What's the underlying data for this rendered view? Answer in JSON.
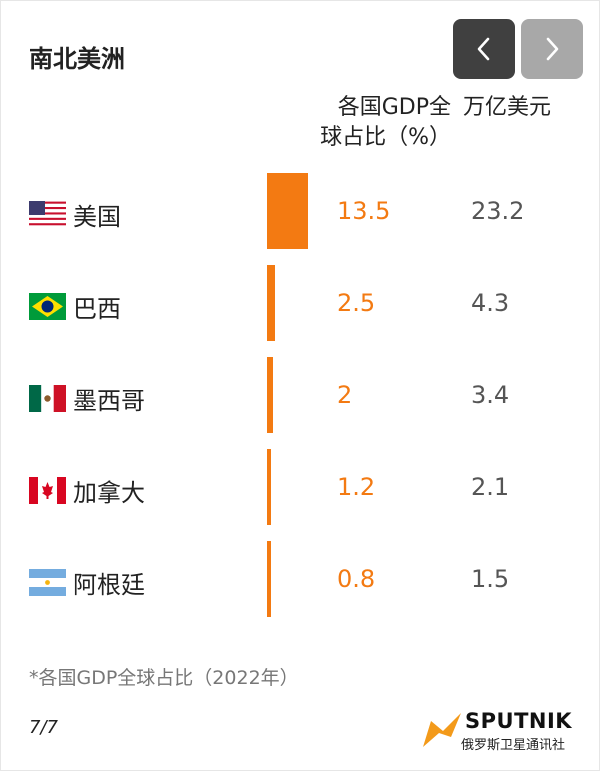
{
  "title": "南北美洲",
  "nav": {
    "prev_icon": "chevron-left-icon",
    "next_icon": "chevron-right-icon"
  },
  "headers": {
    "share_line1": "各国GDP全",
    "share_line2": "球占比（%）",
    "usd": "万亿美元"
  },
  "colors": {
    "bar": "#f37a12",
    "share_text": "#f37a12",
    "usd_text": "#555555"
  },
  "chart_data": {
    "type": "bar",
    "categories": [
      "美国",
      "巴西",
      "墨西哥",
      "加拿大",
      "阿根廷"
    ],
    "series": [
      {
        "values": [
          13.5,
          2.5,
          2,
          1.2,
          0.8
        ]
      },
      {
        "values": [
          23.2,
          4.3,
          3.4,
          2.1,
          1.5
        ]
      }
    ],
    "share_labels": [
      "13.5",
      "2.5",
      "2",
      "1.2",
      "0.8"
    ],
    "usd_labels": [
      "23.2",
      "4.3",
      "3.4",
      "2.1",
      "1.5"
    ],
    "flags": [
      "usa-flag-icon",
      "brazil-flag-icon",
      "mexico-flag-icon",
      "canada-flag-icon",
      "argentina-flag-icon"
    ]
  },
  "footnote": "*各国GDP全球占比（2022年）",
  "page_indicator": "7/7",
  "logo": {
    "brand": "SPUTNIK",
    "subtitle": "俄罗斯卫星通讯社"
  }
}
